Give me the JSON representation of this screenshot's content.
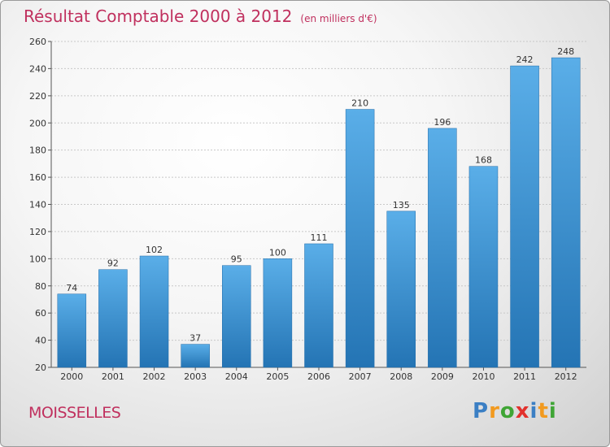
{
  "header": {
    "title": "Résultat Comptable 2000 à 2012",
    "subtitle": "(en milliers d'€)"
  },
  "footer": {
    "commune": "MOISSELLES",
    "logo_letters": [
      "P",
      "r",
      "o",
      "x",
      "i",
      "t",
      "i"
    ],
    "logo_colors": [
      "#3b7fc4",
      "#f29a1f",
      "#3fa535",
      "#e2312d",
      "#3b7fc4",
      "#f29a1f",
      "#3fa535"
    ]
  },
  "chart_data": {
    "type": "bar",
    "categories": [
      "2000",
      "2001",
      "2002",
      "2003",
      "2004",
      "2005",
      "2006",
      "2007",
      "2008",
      "2009",
      "2010",
      "2011",
      "2012"
    ],
    "values": [
      74,
      92,
      102,
      37,
      95,
      100,
      111,
      210,
      135,
      196,
      168,
      242,
      248
    ],
    "ylim": [
      20,
      260
    ],
    "yticks": [
      20,
      40,
      60,
      80,
      100,
      120,
      140,
      160,
      180,
      200,
      220,
      240,
      260
    ],
    "grid": true,
    "bar_color_top": "#5aaee8",
    "bar_color_bottom": "#2474b4"
  }
}
